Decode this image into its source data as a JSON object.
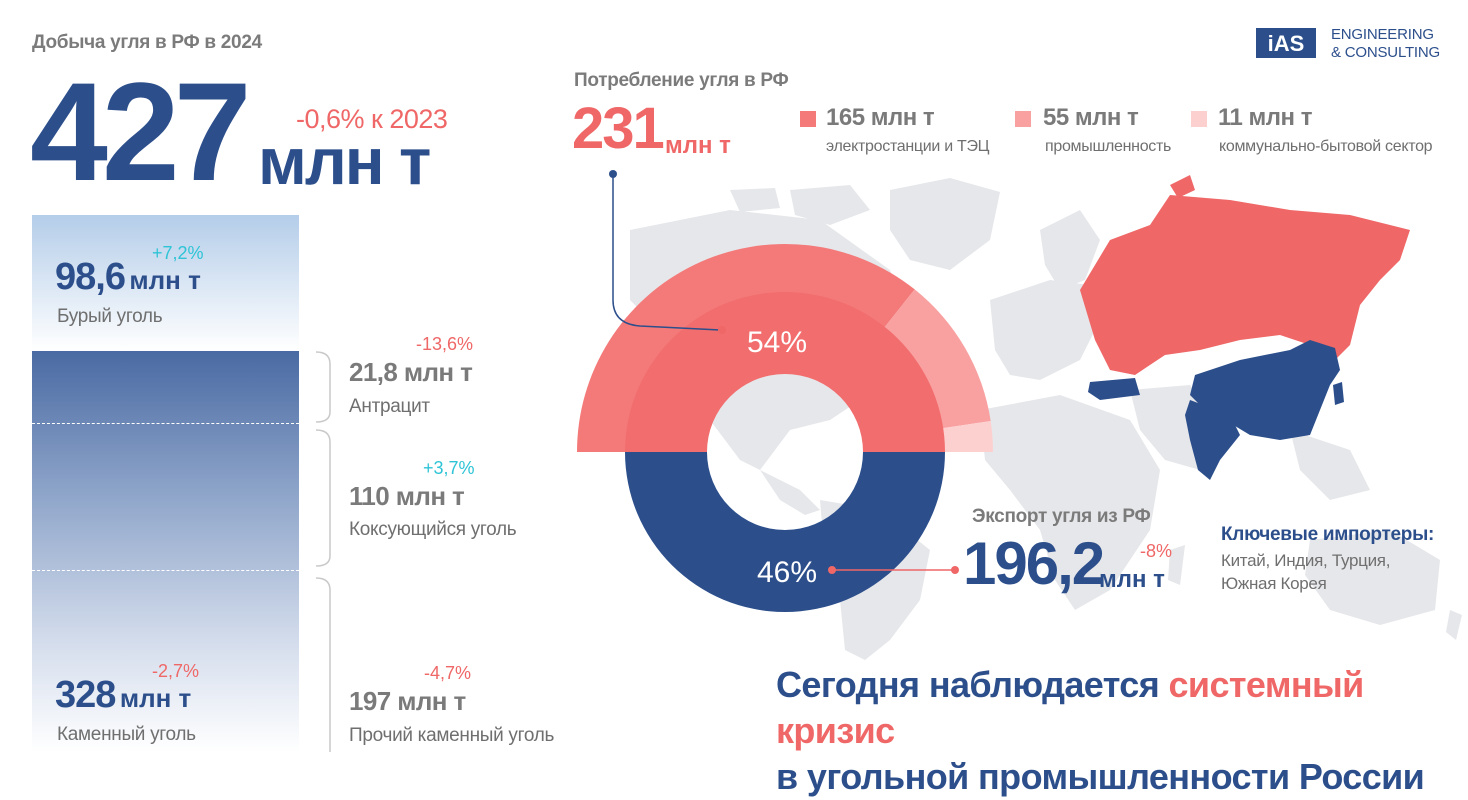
{
  "header": {
    "production_title": "Добыча угля в РФ в 2024",
    "production_value": "427",
    "production_unit": "млн т",
    "production_change": "-0,6% к 2023"
  },
  "logo": {
    "mark": "iAS",
    "line1": "ENGINEERING",
    "line2": "& CONSULTING"
  },
  "production_breakdown": {
    "brown": {
      "value": "98,6",
      "unit": "млн т",
      "change": "+7,2%",
      "label": "Бурый уголь"
    },
    "hard": {
      "value": "328",
      "unit": "млн т",
      "change": "-2,7%",
      "label": "Каменный уголь"
    },
    "anthracite": {
      "value": "21,8 млн т",
      "change": "-13,6%",
      "label": "Антрацит"
    },
    "coking": {
      "value": "110 млн т",
      "change": "+3,7%",
      "label": "Коксующийся уголь"
    },
    "other_hard": {
      "value": "197 млн т",
      "change": "-4,7%",
      "label": "Прочий каменный уголь"
    }
  },
  "consumption": {
    "title": "Потребление угля в РФ",
    "value": "231",
    "unit": "млн т",
    "legend": [
      {
        "value": "165 млн т",
        "label": "электростанции и ТЭЦ",
        "color": "#f47a7a"
      },
      {
        "value": "55 млн т",
        "label": "промышленность",
        "color": "#f9a1a1"
      },
      {
        "value": "11 млн т",
        "label": "коммунально-бытовой сектор",
        "color": "#fdd0d0"
      }
    ]
  },
  "export": {
    "title": "Экспорт угля из РФ",
    "value": "196,2",
    "unit": "млн т",
    "change": "-8%",
    "importers_title": "Ключевые импортеры:",
    "importers_text": "Китай, Индия, Турция, Южная Корея"
  },
  "headline": {
    "part1": "Сегодня наблюдается ",
    "highlight": "системный кризис",
    "part2": "в угольной промышленности России"
  },
  "chart_data": [
    {
      "type": "pie",
      "categories": [
        "Потребление угля в РФ",
        "Экспорт угля из РФ"
      ],
      "values": [
        54,
        46
      ],
      "labels": [
        "54%",
        "46%"
      ],
      "colors": [
        "#f26d6d",
        "#2c4f8c"
      ]
    },
    {
      "type": "pie",
      "categories": [
        "электростанции и ТЭЦ",
        "промышленность",
        "коммунально-бытовой сектор"
      ],
      "values": [
        165,
        55,
        11
      ],
      "colors": [
        "#f47a7a",
        "#f9a1a1",
        "#fdd0d0"
      ]
    }
  ],
  "colors": {
    "navy": "#2c4f8c",
    "coral": "#ef6767",
    "teal": "#2ec4d6",
    "gray_text": "#7a7a7a",
    "map_gray": "#e6e7ea"
  }
}
